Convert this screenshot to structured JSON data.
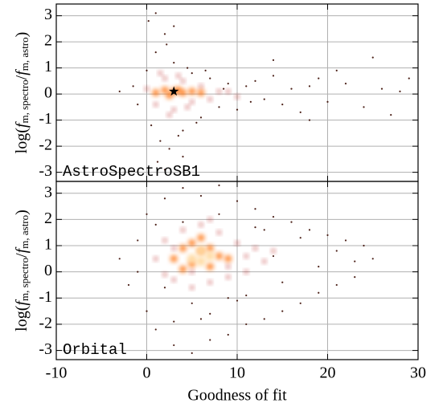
{
  "chart_data": [
    {
      "type": "scatter",
      "label": "AstroSpectroSB1",
      "ylabel_parts": [
        "log(",
        "f",
        "m, spectro",
        "/",
        "f",
        "m, astro",
        ")"
      ],
      "xlim": [
        -10,
        30
      ],
      "xticks": [
        -10,
        0,
        10,
        20,
        30
      ],
      "ylim": [
        -3.35,
        3.45
      ],
      "yticks": [
        -3,
        -2,
        -1,
        0,
        1,
        2,
        3
      ],
      "grid": true,
      "star": {
        "x": 3,
        "y": 0.1,
        "color": "#000000"
      },
      "series": [
        {
          "color": "#3a0a00",
          "x": [
            -3,
            -1.5,
            -1,
            0,
            0.5,
            1,
            1.5,
            2,
            2.5,
            3,
            4,
            5,
            6,
            7,
            8,
            9,
            10,
            11,
            12,
            13,
            14,
            15,
            16,
            17,
            18,
            19,
            20,
            22,
            24,
            26,
            28,
            0.2,
            1.2,
            2.2,
            3.5,
            4.5,
            5.5,
            6.5,
            8.5,
            11.5,
            1,
            2,
            3,
            4,
            14,
            18,
            21,
            25,
            27,
            29
          ],
          "y": [
            0.1,
            0.3,
            -0.4,
            0.9,
            -1.2,
            1.6,
            -1.8,
            2.3,
            -2.1,
            1.2,
            -1.4,
            0.8,
            -0.9,
            0.6,
            -0.5,
            0.4,
            -0.6,
            0.3,
            0.5,
            -0.2,
            0.7,
            -0.4,
            0.2,
            -0.7,
            0.3,
            0.6,
            -0.3,
            0.4,
            -0.5,
            0.2,
            0.1,
            2.8,
            -2.6,
            1.9,
            -1.6,
            1.0,
            -1.1,
            0.9,
            0.2,
            -0.3,
            3.1,
            -2.9,
            2.6,
            -2.4,
            1.3,
            -1.0,
            0.9,
            1.4,
            -0.8,
            0.6
          ]
        },
        {
          "color": "#b01800",
          "x": [
            0,
            1,
            2,
            3,
            4,
            5,
            6,
            7,
            8,
            1.5,
            2.5,
            3.5,
            4.5,
            9,
            10
          ],
          "y": [
            0.2,
            -0.4,
            0.6,
            -0.6,
            0.5,
            -0.3,
            0.3,
            -0.2,
            0.1,
            0.8,
            -0.8,
            0.7,
            -0.5,
            0.1,
            -0.1
          ]
        },
        {
          "color": "#ff6a00",
          "x": [
            1,
            2,
            3,
            4,
            5,
            6,
            2.5,
            3.5
          ],
          "y": [
            0.05,
            0.15,
            0.1,
            0.05,
            0.1,
            0.05,
            -0.05,
            0.15
          ]
        }
      ]
    },
    {
      "type": "scatter",
      "label": "Orbital",
      "ylabel_parts": [
        "log(",
        "f",
        "m, spectro",
        "/",
        "f",
        "m, astro",
        ")"
      ],
      "xlabel": "Goodness of fit",
      "xlim": [
        -10,
        30
      ],
      "xticks": [
        -10,
        0,
        10,
        20,
        30
      ],
      "ylim": [
        -3.35,
        3.45
      ],
      "yticks": [
        -3,
        -2,
        -1,
        0,
        1,
        2,
        3
      ],
      "grid": true,
      "series": [
        {
          "color": "#3a0a00",
          "x": [
            -3,
            -2,
            -1,
            0,
            0,
            1,
            2,
            3,
            4,
            5,
            6,
            7,
            8,
            9,
            10,
            11,
            12,
            13,
            14,
            15,
            16,
            17,
            18,
            19,
            20,
            21,
            22,
            23,
            24,
            25,
            -1,
            1,
            3,
            5,
            7,
            9,
            11,
            13,
            15,
            17,
            19,
            21,
            23,
            2,
            4,
            6,
            8,
            10,
            12,
            14
          ],
          "y": [
            0.5,
            -0.5,
            1.2,
            -1.5,
            2.2,
            -2.2,
            2.8,
            -2.8,
            3.2,
            -3.1,
            2.9,
            -2.6,
            3.3,
            -2.4,
            2.7,
            -2.0,
            2.4,
            -1.8,
            2.1,
            -1.5,
            1.9,
            -1.2,
            1.6,
            -0.8,
            1.4,
            -0.5,
            1.2,
            -0.2,
            1.0,
            0.5,
            0.0,
            1.8,
            -1.9,
            -1.2,
            -1.6,
            -1.0,
            -0.9,
            1.6,
            -0.4,
            1.3,
            0.2,
            0.8,
            0.4,
            -0.6,
            1.9,
            -1.8,
            2.2,
            -1.1,
            1.7,
            0.6
          ]
        },
        {
          "color": "#b01800",
          "x": [
            1,
            2,
            3,
            4,
            5,
            6,
            7,
            8,
            9,
            10,
            11,
            12,
            13,
            3,
            5,
            7,
            9,
            11,
            2,
            14
          ],
          "y": [
            0.5,
            1.2,
            -0.3,
            1.6,
            0.0,
            1.8,
            -0.4,
            1.5,
            0.2,
            1.1,
            0.6,
            0.9,
            0.4,
            0.9,
            -0.6,
            2.0,
            -0.2,
            0.0,
            -0.1,
            0.8
          ]
        },
        {
          "color": "#ff6a00",
          "x": [
            3,
            4,
            5,
            6,
            7,
            8,
            5,
            6,
            7,
            9,
            4
          ],
          "y": [
            0.5,
            0.9,
            0.3,
            0.8,
            0.2,
            0.6,
            1.1,
            1.3,
            0.9,
            0.5,
            0.1
          ]
        },
        {
          "color": "#ffd9a0",
          "x": [
            5,
            6,
            7,
            6
          ],
          "y": [
            0.5,
            0.4,
            0.6,
            0.8
          ]
        }
      ]
    }
  ]
}
